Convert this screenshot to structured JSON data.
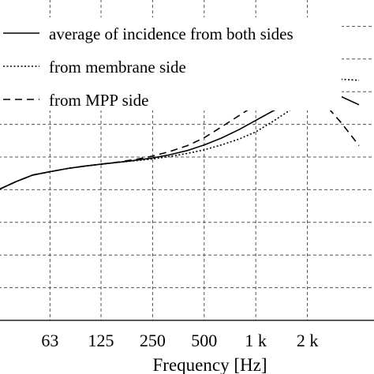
{
  "chart_data": {
    "type": "line",
    "title": "",
    "xlabel": "Frequency [Hz]",
    "ylabel": "",
    "x_scale": "log",
    "x_ticks": [
      63,
      125,
      250,
      500,
      1000,
      2000
    ],
    "x_tick_labels": [
      "63",
      "125",
      "250",
      "500",
      "1 k",
      "2 k"
    ],
    "xlim": [
      31.5,
      5000
    ],
    "ylim": [
      0,
      1
    ],
    "y_ticks": [
      0.1,
      0.2,
      0.3,
      0.4,
      0.5,
      0.6,
      0.7,
      0.8,
      0.9,
      1.0
    ],
    "grid": true,
    "legend_position": "top-left",
    "series": [
      {
        "name": "average of incidence from both sides",
        "style": "solid",
        "x": [
          31.5,
          40,
          50,
          63,
          80,
          100,
          125,
          160,
          200,
          250,
          315,
          400,
          500,
          630,
          800,
          1000,
          1250,
          1600,
          2000,
          2500,
          3150,
          4000
        ],
        "y": [
          0.4,
          0.425,
          0.445,
          0.455,
          0.465,
          0.472,
          0.478,
          0.484,
          0.49,
          0.497,
          0.507,
          0.52,
          0.537,
          0.558,
          0.584,
          0.612,
          0.64,
          0.667,
          0.688,
          0.695,
          0.685,
          0.66
        ]
      },
      {
        "name": "from membrane side",
        "style": "dotted",
        "x": [
          31.5,
          40,
          50,
          63,
          80,
          100,
          125,
          160,
          200,
          250,
          315,
          400,
          500,
          630,
          800,
          1000,
          1250,
          1600,
          2000,
          2500,
          3150,
          4000
        ],
        "y": [
          0.4,
          0.425,
          0.445,
          0.455,
          0.465,
          0.472,
          0.478,
          0.484,
          0.489,
          0.494,
          0.502,
          0.511,
          0.522,
          0.537,
          0.555,
          0.577,
          0.608,
          0.645,
          0.68,
          0.715,
          0.738,
          0.735
        ]
      },
      {
        "name": "from MPP side",
        "style": "dashed",
        "x": [
          31.5,
          40,
          50,
          63,
          80,
          100,
          125,
          160,
          200,
          250,
          315,
          400,
          500,
          630,
          800,
          1000,
          1250,
          1600,
          2000,
          2500,
          3150,
          4000
        ],
        "y": [
          0.4,
          0.425,
          0.445,
          0.455,
          0.465,
          0.472,
          0.478,
          0.485,
          0.493,
          0.503,
          0.517,
          0.535,
          0.559,
          0.592,
          0.627,
          0.66,
          0.685,
          0.7,
          0.692,
          0.665,
          0.605,
          0.535
        ]
      }
    ]
  }
}
